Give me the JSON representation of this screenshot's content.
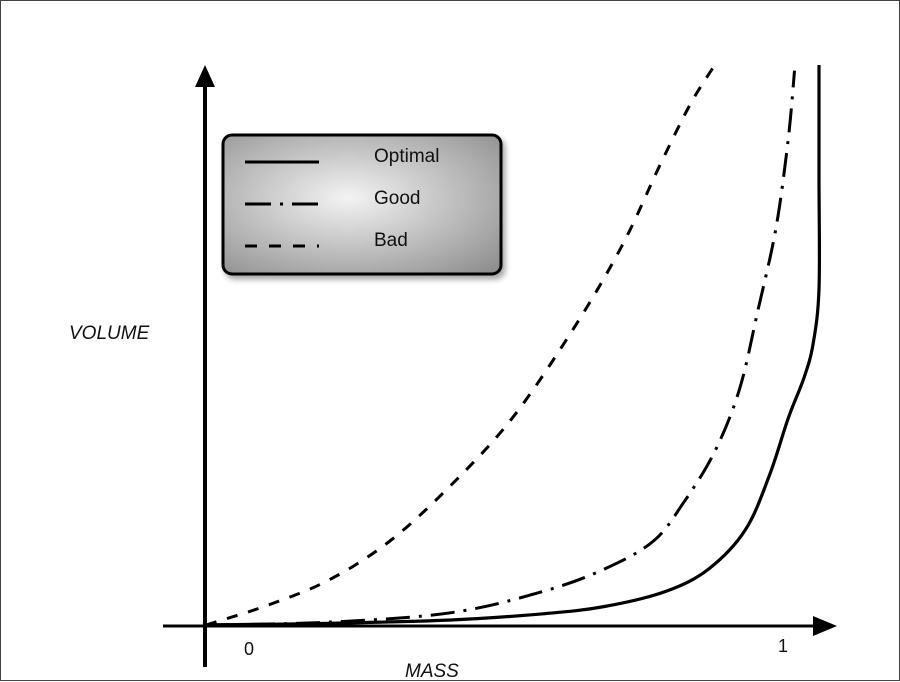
{
  "chart_data": {
    "type": "line",
    "title": "",
    "xlabel": "MASS",
    "ylabel": "VOLUME",
    "xlim": [
      0,
      1
    ],
    "ylim": [
      0,
      1
    ],
    "x_tick_labels": [
      "0",
      "1"
    ],
    "grid": false,
    "legend": {
      "position": "top-left",
      "entries": [
        {
          "label": "Optimal",
          "style": "solid"
        },
        {
          "label": "Good",
          "style": "dash-dot"
        },
        {
          "label": "Bad",
          "style": "dashed"
        }
      ]
    },
    "series": [
      {
        "name": "Optimal",
        "style": "solid",
        "color": "#000000",
        "x": [
          0,
          0.2,
          0.4,
          0.55,
          0.65,
          0.75,
          0.82,
          0.88,
          0.92,
          0.95,
          0.975,
          0.99,
          1.0,
          1.0,
          1.0
        ],
        "y": [
          0,
          0.003,
          0.009,
          0.02,
          0.033,
          0.06,
          0.1,
          0.17,
          0.27,
          0.37,
          0.44,
          0.5,
          0.6,
          0.8,
          1.0
        ]
      },
      {
        "name": "Good",
        "style": "dash-dot",
        "color": "#000000",
        "x": [
          0,
          0.2,
          0.4,
          0.55,
          0.65,
          0.73,
          0.78,
          0.83,
          0.87,
          0.9,
          0.93,
          0.95,
          0.96
        ],
        "y": [
          0,
          0.005,
          0.022,
          0.06,
          0.1,
          0.15,
          0.22,
          0.31,
          0.42,
          0.56,
          0.71,
          0.87,
          0.99
        ]
      },
      {
        "name": "Bad",
        "style": "dashed",
        "color": "#000000",
        "x": [
          0,
          0.1,
          0.2,
          0.3,
          0.4,
          0.5,
          0.6,
          0.68,
          0.74,
          0.79,
          0.83
        ],
        "y": [
          0,
          0.035,
          0.08,
          0.15,
          0.25,
          0.37,
          0.53,
          0.68,
          0.82,
          0.93,
          1.0
        ]
      }
    ]
  },
  "colors": {
    "axis": "#000000",
    "legend_fill_start": "#f3f3f3",
    "legend_fill_end": "#8d8d8d"
  }
}
